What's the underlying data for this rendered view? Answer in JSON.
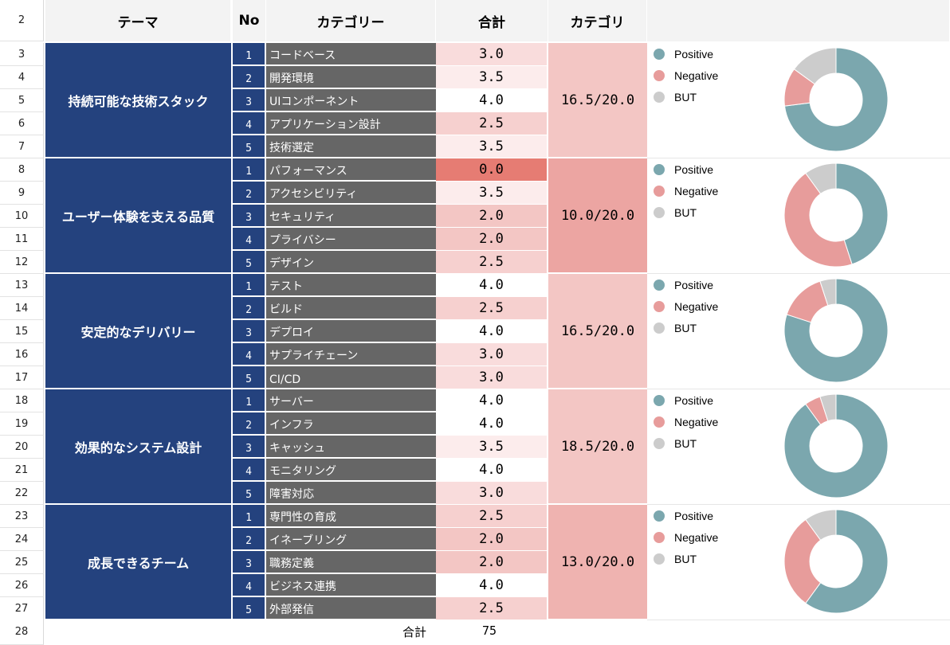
{
  "header": {
    "row_number": "2",
    "theme": "テーマ",
    "no": "No",
    "category": "カテゴリー",
    "total": "合計",
    "category_total": "カテゴリ"
  },
  "colors": {
    "theme_bg": "#24427e",
    "category_bg": "#666666",
    "positive": "#7ba7ae",
    "negative": "#e79c9b",
    "but": "#cccccc"
  },
  "legend": [
    "Positive",
    "Negative",
    "BUT"
  ],
  "groups": [
    {
      "theme": "持続可能な技術スタック",
      "category_total": "16.5/20.0",
      "rows": [
        {
          "row": "3",
          "no": "1",
          "category": "コードベース",
          "score": "3.0"
        },
        {
          "row": "4",
          "no": "2",
          "category": "開発環境",
          "score": "3.5"
        },
        {
          "row": "5",
          "no": "3",
          "category": "UIコンポーネント",
          "score": "4.0"
        },
        {
          "row": "6",
          "no": "4",
          "category": "アプリケーション設計",
          "score": "2.5"
        },
        {
          "row": "7",
          "no": "5",
          "category": "技術選定",
          "score": "3.5"
        }
      ],
      "chart": {
        "positive": 0.73,
        "negative": 0.12,
        "but": 0.15
      }
    },
    {
      "theme": "ユーザー体験を支える品質",
      "category_total": "10.0/20.0",
      "rows": [
        {
          "row": "8",
          "no": "1",
          "category": "パフォーマンス",
          "score": "0.0"
        },
        {
          "row": "9",
          "no": "2",
          "category": "アクセシビリティ",
          "score": "3.5"
        },
        {
          "row": "10",
          "no": "3",
          "category": "セキュリティ",
          "score": "2.0"
        },
        {
          "row": "11",
          "no": "4",
          "category": "プライバシー",
          "score": "2.0"
        },
        {
          "row": "12",
          "no": "5",
          "category": "デザイン",
          "score": "2.5"
        }
      ],
      "chart": {
        "positive": 0.45,
        "negative": 0.45,
        "but": 0.1
      }
    },
    {
      "theme": "安定的なデリバリー",
      "category_total": "16.5/20.0",
      "rows": [
        {
          "row": "13",
          "no": "1",
          "category": "テスト",
          "score": "4.0"
        },
        {
          "row": "14",
          "no": "2",
          "category": "ビルド",
          "score": "2.5"
        },
        {
          "row": "15",
          "no": "3",
          "category": "デプロイ",
          "score": "4.0"
        },
        {
          "row": "16",
          "no": "4",
          "category": "サプライチェーン",
          "score": "3.0"
        },
        {
          "row": "17",
          "no": "5",
          "category": "CI/CD",
          "score": "3.0"
        }
      ],
      "chart": {
        "positive": 0.8,
        "negative": 0.15,
        "but": 0.05
      }
    },
    {
      "theme": "効果的なシステム設計",
      "category_total": "18.5/20.0",
      "rows": [
        {
          "row": "18",
          "no": "1",
          "category": "サーバー",
          "score": "4.0"
        },
        {
          "row": "19",
          "no": "2",
          "category": "インフラ",
          "score": "4.0"
        },
        {
          "row": "20",
          "no": "3",
          "category": "キャッシュ",
          "score": "3.5"
        },
        {
          "row": "21",
          "no": "4",
          "category": "モニタリング",
          "score": "4.0"
        },
        {
          "row": "22",
          "no": "5",
          "category": "障害対応",
          "score": "3.0"
        }
      ],
      "chart": {
        "positive": 0.9,
        "negative": 0.05,
        "but": 0.05
      }
    },
    {
      "theme": "成長できるチーム",
      "category_total": "13.0/20.0",
      "rows": [
        {
          "row": "23",
          "no": "1",
          "category": "専門性の育成",
          "score": "2.5"
        },
        {
          "row": "24",
          "no": "2",
          "category": "イネーブリング",
          "score": "2.0"
        },
        {
          "row": "25",
          "no": "3",
          "category": "職務定義",
          "score": "2.0"
        },
        {
          "row": "26",
          "no": "4",
          "category": "ビジネス連携",
          "score": "4.0"
        },
        {
          "row": "27",
          "no": "5",
          "category": "外部発信",
          "score": "2.5"
        }
      ],
      "chart": {
        "positive": 0.6,
        "negative": 0.3,
        "but": 0.1
      }
    }
  ],
  "footer": {
    "row": "28",
    "label": "合計",
    "value": "75"
  }
}
